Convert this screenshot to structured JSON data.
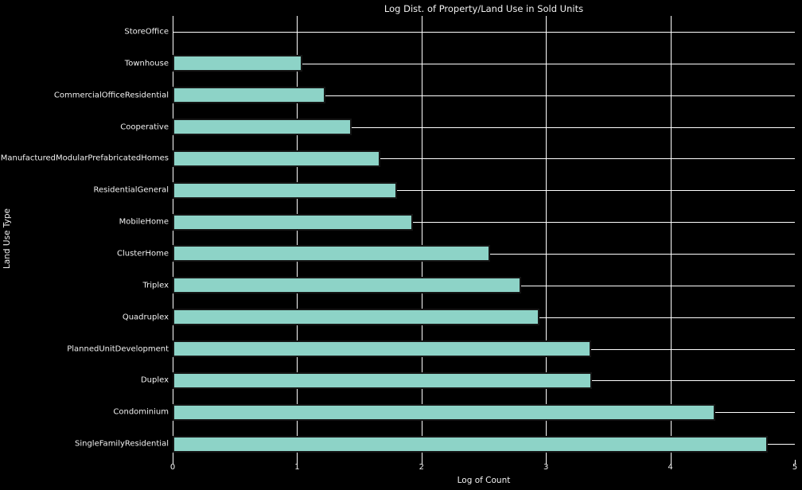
{
  "chart_data": {
    "type": "bar",
    "orientation": "horizontal",
    "title": "Log Dist. of Property/Land Use in Sold Units",
    "xlabel": "Log of Count",
    "ylabel": "Land Use Type",
    "xlim": [
      0,
      5
    ],
    "xticks": [
      0,
      1,
      2,
      3,
      4,
      5
    ],
    "grid": true,
    "legend": false,
    "categories": [
      "StoreOffice",
      "Townhouse",
      "CommercialOfficeResidential",
      "Cooperative",
      "ManufacturedModularPrefabricatedHomes",
      "ResidentialGeneral",
      "MobileHome",
      "ClusterHome",
      "Triplex",
      "Quadruplex",
      "PlannedUnitDevelopment",
      "Duplex",
      "Condominium",
      "SingleFamilyResidential"
    ],
    "values": [
      0.0,
      1.04,
      1.23,
      1.44,
      1.67,
      1.8,
      1.93,
      2.55,
      2.8,
      2.95,
      3.36,
      3.37,
      4.36,
      4.78
    ],
    "colors": {
      "background": "#000000",
      "bar_fill": "#8dd3c7",
      "bar_edge": "#141414",
      "gridline": "#ffffff",
      "text": "#f2f2f2"
    }
  }
}
